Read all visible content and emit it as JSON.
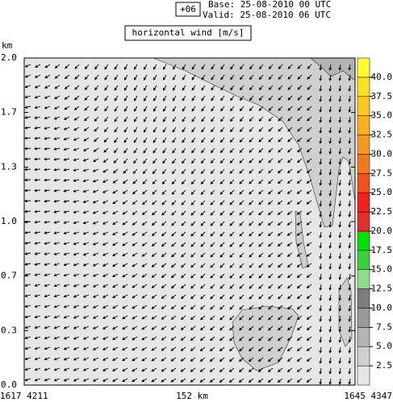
{
  "chart_data": {
    "type": "wind-field",
    "run_label": "+06",
    "base": "Base: 25-08-2010  00 UTC",
    "valid": "Valid: 25-08-2010  06 UTC",
    "title": "horizontal wind [m/s]",
    "ylabel": "km",
    "ylim": [
      0,
      2
    ],
    "yticks": [
      {
        "value": 2,
        "label": "2.0"
      },
      {
        "value": 1.667,
        "label": "1.7"
      },
      {
        "value": 1.333,
        "label": "1.3"
      },
      {
        "value": 1,
        "label": "1.0"
      },
      {
        "value": 0.667,
        "label": "0.7"
      },
      {
        "value": 0.333,
        "label": "0.3"
      },
      {
        "value": 0,
        "label": "0.0"
      }
    ],
    "x_labels": [
      "1617  4211",
      "152 km",
      "1645  4347"
    ],
    "colorbar": {
      "levels": [
        2.5,
        {
          "value": 5,
          "label": "5.0"
        },
        7.5,
        {
          "value": 10,
          "label": "10.0"
        },
        12.5,
        {
          "value": 15,
          "label": "15.0"
        },
        17.5,
        {
          "value": 20,
          "label": "20.0"
        },
        22.5,
        {
          "value": 25,
          "label": "25.0"
        },
        27.5,
        {
          "value": 30,
          "label": "30.0"
        },
        32.5,
        {
          "value": 35,
          "label": "35.0"
        },
        37.5,
        {
          "value": 40,
          "label": "40.0"
        }
      ],
      "colors": [
        "#e6e6e6",
        "#cfcfcf",
        "#b4b4b4",
        "#999999",
        "#7d7d7d",
        "#8fdc8f",
        "#3ccf3c",
        "#00e000",
        "#e03030",
        "#f02020",
        "#f05020",
        "#f07a20",
        "#f59a20",
        "#f8b020",
        "#fcc820",
        "#fde020",
        "#ffff30"
      ]
    }
  }
}
